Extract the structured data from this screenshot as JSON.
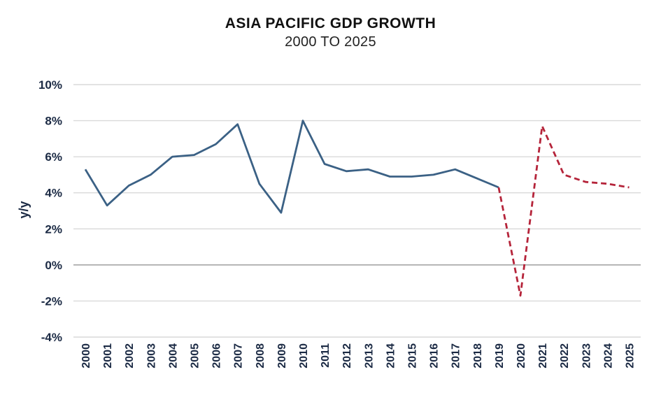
{
  "chart_data": {
    "type": "line",
    "title": "ASIA PACIFIC GDP GROWTH",
    "subtitle": "2000 TO 2025",
    "xlabel": "",
    "ylabel": "y/y",
    "ylim": [
      -4,
      10
    ],
    "ytick_values": [
      10,
      8,
      6,
      4,
      2,
      0,
      -2,
      -4
    ],
    "ytick_labels": [
      "10%",
      "8%",
      "6%",
      "4%",
      "2%",
      "0%",
      "-2%",
      "-4%"
    ],
    "categories": [
      "2000",
      "2001",
      "2002",
      "2003",
      "2004",
      "2005",
      "2006",
      "2007",
      "2008",
      "2009",
      "2010",
      "2011",
      "2012",
      "2013",
      "2014",
      "2015",
      "2016",
      "2017",
      "2018",
      "2019",
      "2020",
      "2021",
      "2022",
      "2023",
      "2024",
      "2025"
    ],
    "grid": true,
    "series": [
      {
        "style": "solid",
        "color": "#3b6185",
        "x": [
          "2000",
          "2001",
          "2002",
          "2003",
          "2004",
          "2005",
          "2006",
          "2007",
          "2008",
          "2009",
          "2010",
          "2011",
          "2012",
          "2013",
          "2014",
          "2015",
          "2016",
          "2017",
          "2018",
          "2019"
        ],
        "values": [
          5.3,
          3.3,
          4.4,
          5.0,
          6.0,
          6.1,
          6.7,
          7.8,
          4.5,
          2.9,
          8.0,
          5.6,
          5.2,
          5.3,
          4.9,
          4.9,
          5.0,
          5.3,
          4.8,
          4.3
        ]
      },
      {
        "style": "dashed",
        "color": "#b5243a",
        "x": [
          "2019",
          "2020",
          "2021",
          "2022",
          "2023",
          "2024",
          "2025"
        ],
        "values": [
          4.3,
          -1.7,
          7.7,
          5.0,
          4.6,
          4.5,
          4.3
        ]
      }
    ],
    "colors": {
      "solid_series": "#3b6185",
      "dashed_series": "#b5243a",
      "grid": "#d9d9d9",
      "zero_line": "#a6a6a6",
      "text": "#1b2a44"
    }
  }
}
